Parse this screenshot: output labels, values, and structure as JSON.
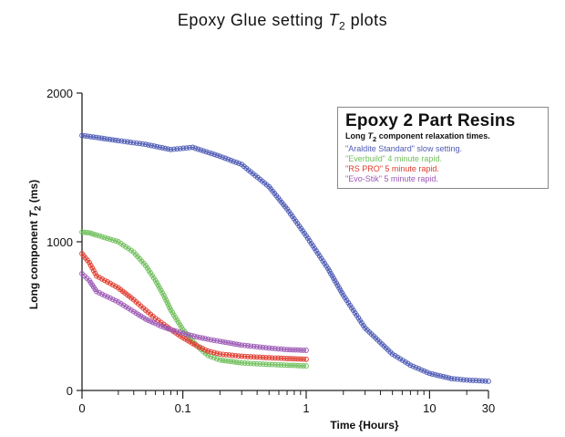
{
  "chart_data": {
    "type": "scatter",
    "title_main": "Epoxy Glue setting",
    "title_symbol": "T",
    "title_sub": "2",
    "title_tail": "plots",
    "ylabel_pre": "Long component",
    "ylabel_symbol": "T",
    "ylabel_sub": "2",
    "ylabel_post": "(ms)",
    "xlabel": "Time {Hours}",
    "ylim": [
      0,
      2000
    ],
    "xlim": [
      0,
      30
    ],
    "x_scale": "log-like time axis with 0 at origin",
    "yticks": [
      {
        "value": 0,
        "label": "0"
      },
      {
        "value": 1000,
        "label": "1000"
      },
      {
        "value": 2000,
        "label": "2000"
      }
    ],
    "xticks": [
      {
        "value": 0,
        "label": "0"
      },
      {
        "value": 0.1,
        "label": "0.1"
      },
      {
        "value": 1,
        "label": "1"
      },
      {
        "value": 10,
        "label": "10"
      },
      {
        "value": 30,
        "label": "30"
      }
    ],
    "legend": {
      "title": "Epoxy 2 Part Resins",
      "subtitle_pre": "Long",
      "subtitle_symbol": "T",
      "subtitle_sub": "2",
      "subtitle_post": "component relaxation times.",
      "placement": "top-right"
    },
    "series": [
      {
        "name": "\"Araldite Standard\" slow setting.",
        "color": "#4e5bb5",
        "x": [
          0,
          0.03,
          0.05,
          0.08,
          0.12,
          0.2,
          0.3,
          0.5,
          0.7,
          1.0,
          1.5,
          2.0,
          3.0,
          5.0,
          7.0,
          10.0,
          15.0,
          20.0,
          30.0
        ],
        "y": [
          1715,
          1680,
          1655,
          1620,
          1635,
          1575,
          1520,
          1370,
          1220,
          1040,
          820,
          640,
          420,
          245,
          170,
          115,
          80,
          70,
          62
        ]
      },
      {
        "name": "\"Everbuild\" 4 minute rapid.",
        "color": "#6fbf5a",
        "x": [
          0,
          0.01,
          0.02,
          0.03,
          0.04,
          0.05,
          0.06,
          0.07,
          0.08,
          0.1,
          0.13,
          0.16,
          0.2,
          0.3,
          0.5,
          0.7,
          1.0
        ],
        "y": [
          1065,
          1060,
          1045,
          1000,
          930,
          840,
          740,
          640,
          540,
          410,
          300,
          235,
          205,
          185,
          175,
          170,
          165
        ]
      },
      {
        "name": "\"RS PRO\" 5 minute rapid.",
        "color": "#e03c2e",
        "x": [
          0,
          0.01,
          0.02,
          0.03,
          0.04,
          0.05,
          0.06,
          0.07,
          0.08,
          0.1,
          0.13,
          0.16,
          0.2,
          0.3,
          0.5,
          0.7,
          1.0
        ],
        "y": [
          920,
          860,
          770,
          690,
          610,
          540,
          485,
          445,
          410,
          355,
          300,
          265,
          245,
          230,
          220,
          215,
          210
        ]
      },
      {
        "name": "\"Evo-Stik\" 5 minute rapid.",
        "color": "#9b59b6",
        "x": [
          0,
          0.01,
          0.02,
          0.03,
          0.04,
          0.05,
          0.06,
          0.07,
          0.08,
          0.1,
          0.13,
          0.16,
          0.2,
          0.3,
          0.5,
          0.7,
          1.0
        ],
        "y": [
          785,
          740,
          665,
          595,
          530,
          480,
          450,
          425,
          410,
          385,
          360,
          345,
          330,
          305,
          285,
          275,
          270
        ]
      }
    ]
  }
}
